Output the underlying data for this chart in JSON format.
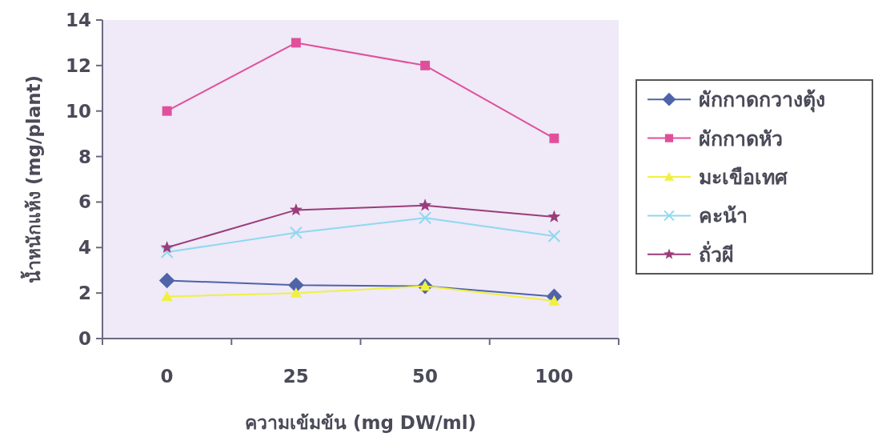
{
  "chart_data": {
    "type": "line",
    "xlabel": "ความเข้มข้น  (mg DW/ml)",
    "ylabel": "น้ำหนักแห้ง  (mg/plant)",
    "categories": [
      "0",
      "25",
      "50",
      "100"
    ],
    "series": [
      {
        "name": "ผักกาดกวางตุ้ง",
        "color": "#4f63a8",
        "marker": "diamond",
        "values": [
          2.55,
          2.35,
          2.3,
          1.85
        ]
      },
      {
        "name": "ผักกาดหัว",
        "color": "#e0509a",
        "marker": "square",
        "values": [
          10,
          13,
          12,
          8.8
        ]
      },
      {
        "name": "มะเขือเทศ",
        "color": "#f0f040",
        "marker": "triangle",
        "values": [
          1.85,
          2.0,
          2.3,
          1.65
        ]
      },
      {
        "name": "คะน้า",
        "color": "#8fd8f0",
        "marker": "cross",
        "values": [
          3.8,
          4.65,
          5.3,
          4.5
        ]
      },
      {
        "name": "ถั่วผี",
        "color": "#9a3d7a",
        "marker": "star",
        "values": [
          4.0,
          5.65,
          5.85,
          5.35
        ]
      }
    ],
    "ylim": [
      0,
      14
    ],
    "yticks": [
      0,
      2,
      4,
      6,
      8,
      10,
      12,
      14
    ],
    "grid": false,
    "legend": "right",
    "line_style": "solid"
  }
}
